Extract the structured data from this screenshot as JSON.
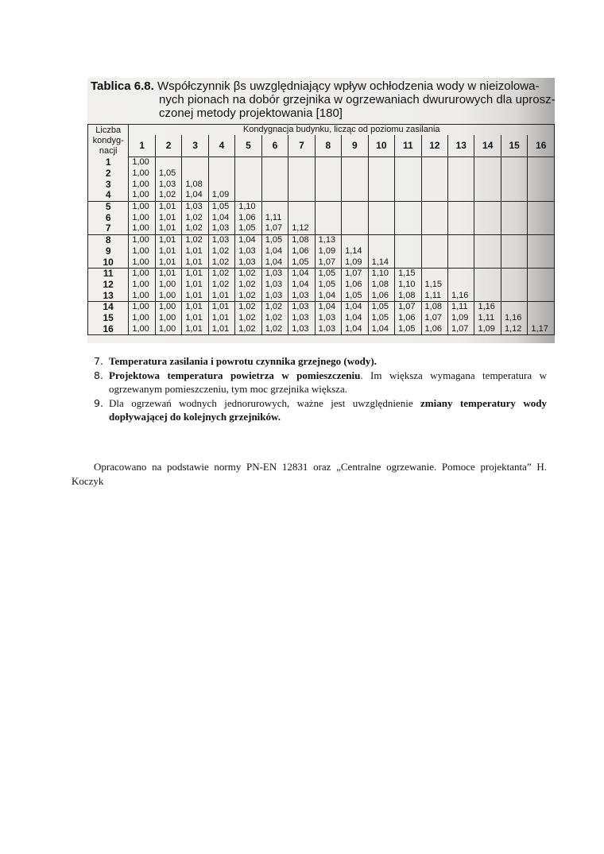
{
  "table_scan": {
    "title_label": "Tablica 6.8.",
    "title_line1": "Współczynnik βs uwzględniający wpływ ochłodzenia wody w nieizolowa-",
    "title_line2": "nych pionach na dobór grzejnika w ogrzewaniach dwururowych dla uprosz-",
    "title_line3": "czonej metody projektowania [180]",
    "row_header": "Liczba kondyg-nacji",
    "col_group_header": "Kondygnacja budynku, licząc od poziomu zasilania",
    "columns": [
      "1",
      "2",
      "3",
      "4",
      "5",
      "6",
      "7",
      "8",
      "9",
      "10",
      "11",
      "12",
      "13",
      "14",
      "15",
      "16"
    ],
    "rows": [
      {
        "label": "1",
        "values": [
          "1,00"
        ]
      },
      {
        "label": "2",
        "values": [
          "1,00",
          "1,05"
        ]
      },
      {
        "label": "3",
        "values": [
          "1,00",
          "1,03",
          "1,08"
        ]
      },
      {
        "label": "4",
        "values": [
          "1,00",
          "1,02",
          "1,04",
          "1,09"
        ]
      },
      {
        "label": "5",
        "values": [
          "1,00",
          "1,01",
          "1,03",
          "1,05",
          "1,10"
        ]
      },
      {
        "label": "6",
        "values": [
          "1,00",
          "1,01",
          "1,02",
          "1,04",
          "1,06",
          "1,11"
        ]
      },
      {
        "label": "7",
        "values": [
          "1,00",
          "1,01",
          "1,02",
          "1,03",
          "1,05",
          "1,07",
          "1,12"
        ]
      },
      {
        "label": "8",
        "values": [
          "1,00",
          "1,01",
          "1,02",
          "1,03",
          "1,04",
          "1,05",
          "1,08",
          "1,13"
        ]
      },
      {
        "label": "9",
        "values": [
          "1,00",
          "1,01",
          "1,01",
          "1,02",
          "1,03",
          "1,04",
          "1,06",
          "1,09",
          "1,14"
        ]
      },
      {
        "label": "10",
        "values": [
          "1,00",
          "1,01",
          "1,01",
          "1,02",
          "1,03",
          "1,04",
          "1,05",
          "1,07",
          "1,09",
          "1,14"
        ]
      },
      {
        "label": "11",
        "values": [
          "1,00",
          "1,01",
          "1,01",
          "1,02",
          "1,02",
          "1,03",
          "1,04",
          "1,05",
          "1,07",
          "1,10",
          "1,15"
        ]
      },
      {
        "label": "12",
        "values": [
          "1,00",
          "1,00",
          "1,01",
          "1,02",
          "1,02",
          "1,03",
          "1,04",
          "1,05",
          "1,06",
          "1,08",
          "1,10",
          "1,15"
        ]
      },
      {
        "label": "13",
        "values": [
          "1,00",
          "1,00",
          "1,01",
          "1,01",
          "1,02",
          "1,03",
          "1,03",
          "1,04",
          "1,05",
          "1,06",
          "1,08",
          "1,11",
          "1,16"
        ]
      },
      {
        "label": "14",
        "values": [
          "1,00",
          "1,00",
          "1,01",
          "1,01",
          "1,02",
          "1,02",
          "1,03",
          "1,04",
          "1,04",
          "1,05",
          "1,07",
          "1,08",
          "1,11",
          "1,16"
        ]
      },
      {
        "label": "15",
        "values": [
          "1,00",
          "1,00",
          "1,01",
          "1,01",
          "1,02",
          "1,02",
          "1,03",
          "1,03",
          "1,04",
          "1,05",
          "1,06",
          "1,07",
          "1,09",
          "1,11",
          "1,16"
        ]
      },
      {
        "label": "16",
        "values": [
          "1,00",
          "1,00",
          "1,01",
          "1,01",
          "1,02",
          "1,02",
          "1,03",
          "1,03",
          "1,04",
          "1,04",
          "1,05",
          "1,06",
          "1,07",
          "1,09",
          "1,12",
          "1,17"
        ]
      }
    ]
  },
  "list": [
    {
      "num": "7.",
      "bold": "Temperatura zasilania i powrotu czynnika grzejnego (wody).",
      "text": "",
      "bold2": ""
    },
    {
      "num": "8.",
      "bold": "Projektowa temperatura powietrza w pomieszczeniu",
      "text": ". Im większa wymagana temperatura w ogrzewanym pomieszczeniu, tym moc grzejnika większa.",
      "bold2": ""
    },
    {
      "num": "9.",
      "bold": "",
      "text": "Dla ogrzewań wodnych jednorurowych, ważne jest uwzględnienie ",
      "bold2": "zmiany temperatury wody dopływającej do kolejnych grzejników."
    }
  ],
  "source_note": "Opracowano na podstawie normy PN-EN 12831 oraz „Centralne ogrzewanie. Pomoce projektanta” H. Koczyk"
}
